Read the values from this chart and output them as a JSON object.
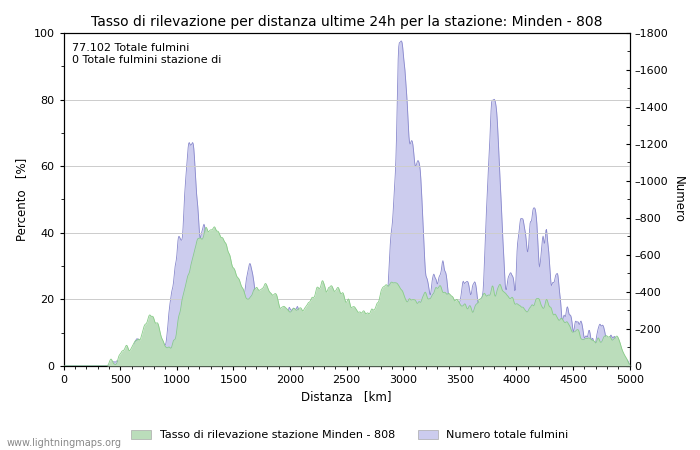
{
  "title": "Tasso di rilevazione per distanza ultime 24h per la stazione: Minden - 808",
  "xlabel": "Distanza   [km]",
  "ylabel_left": "Percento   [%]",
  "ylabel_right": "Numero",
  "annotation_line1": "77.102 Totale fulmini",
  "annotation_line2": "0 Totale fulmini stazione di",
  "legend_green": "Tasso di rilevazione stazione Minden - 808",
  "legend_blue": "Numero totale fulmini",
  "watermark": "www.lightningmaps.org",
  "xlim": [
    0,
    5000
  ],
  "ylim_left": [
    0,
    100
  ],
  "ylim_right": [
    0,
    1800
  ],
  "xticks": [
    0,
    500,
    1000,
    1500,
    2000,
    2500,
    3000,
    3500,
    4000,
    4500,
    5000
  ],
  "yticks_left": [
    0,
    20,
    40,
    60,
    80,
    100
  ],
  "yticks_right": [
    0,
    200,
    400,
    600,
    800,
    1000,
    1200,
    1400,
    1600,
    1800
  ],
  "fill_blue_color": "#ccccee",
  "fill_green_color": "#bbddbb",
  "line_blue_color": "#8888cc",
  "line_green_color": "#88cc88",
  "bg_color": "#ffffff",
  "grid_color": "#cccccc",
  "title_fontsize": 10,
  "label_fontsize": 8.5,
  "tick_fontsize": 8,
  "annotation_fontsize": 8
}
